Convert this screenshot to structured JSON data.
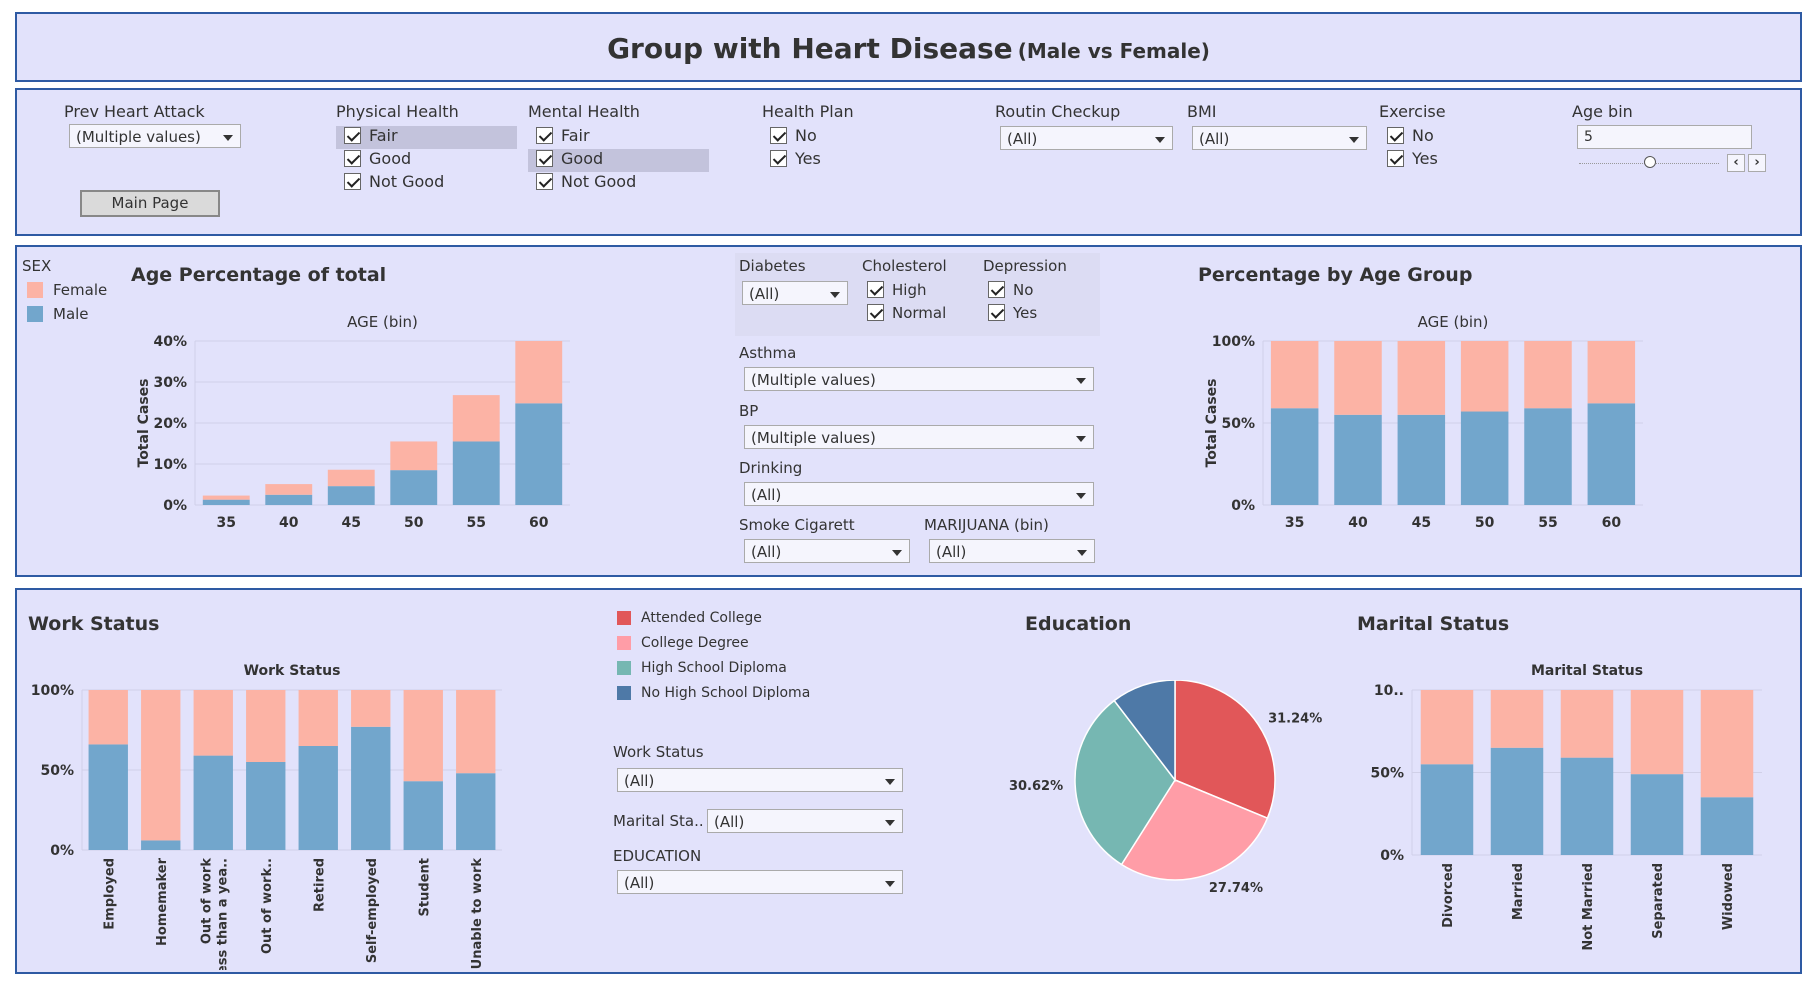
{
  "title": {
    "main": "Group with Heart Disease",
    "sub": "(Male vs Female)"
  },
  "colors": {
    "female": "#fcb3a5",
    "male": "#72a6cc",
    "panel": "#e2e2fb",
    "border": "#2e5aa3"
  },
  "filters": {
    "prev_heart_attack": {
      "label": "Prev Heart Attack",
      "value": "(Multiple values)"
    },
    "main_page_button": "Main Page",
    "physical_health": {
      "label": "Physical Health",
      "options": [
        "Fair",
        "Good",
        "Not Good"
      ]
    },
    "mental_health": {
      "label": "Mental Health",
      "options": [
        "Fair",
        "Good",
        "Not Good"
      ]
    },
    "health_plan": {
      "label": "Health Plan",
      "options": [
        "No",
        "Yes"
      ]
    },
    "routin_checkup": {
      "label": "Routin Checkup",
      "value": "(All)"
    },
    "bmi": {
      "label": "BMI",
      "value": "(All)"
    },
    "exercise": {
      "label": "Exercise",
      "options": [
        "No",
        "Yes"
      ]
    },
    "age_bin": {
      "label": "Age bin",
      "value": "5",
      "prev_icon": "chevron-left-icon",
      "next_icon": "chevron-right-icon"
    }
  },
  "sex_legend": {
    "title": "SEX",
    "items": [
      "Female",
      "Male"
    ]
  },
  "age_chart": {
    "title": "Age Percentage of total"
  },
  "pct_chart": {
    "title": "Percentage by Age Group"
  },
  "mid_filters": {
    "diabetes": {
      "label": "Diabetes",
      "value": "(All)"
    },
    "cholesterol": {
      "label": "Cholesterol",
      "options": [
        "High",
        "Normal"
      ]
    },
    "depression": {
      "label": "Depression",
      "options": [
        "No",
        "Yes"
      ]
    },
    "asthma": {
      "label": "Asthma",
      "value": "(Multiple values)"
    },
    "bp": {
      "label": "BP",
      "value": "(Multiple values)"
    },
    "drinking": {
      "label": "Drinking",
      "value": "(All)"
    },
    "smoke_cigarett": {
      "label": "Smoke Cigarett",
      "value": "(All)"
    },
    "marijuana": {
      "label": "MARIJUANA (bin)",
      "value": "(All)"
    }
  },
  "work_chart": {
    "title": "Work Status"
  },
  "edu_legend": {
    "items": [
      {
        "name": "Attended College",
        "color": "#e15759"
      },
      {
        "name": "College Degree",
        "color": "#ff9da7"
      },
      {
        "name": "High School Diploma",
        "color": "#76b7b2"
      },
      {
        "name": "No High School Diploma",
        "color": "#4e79a7"
      }
    ]
  },
  "bottom_filters": {
    "work_status": {
      "label": "Work Status",
      "value": "(All)"
    },
    "marital_status": {
      "label": "Marital Sta..",
      "value": "(All)"
    },
    "education": {
      "label": "EDUCATION",
      "value": "(All)"
    }
  },
  "edu_chart": {
    "title": "Education"
  },
  "marital_chart": {
    "title": "Marital Status"
  },
  "chart_data": [
    {
      "id": "age_pct_total",
      "type": "bar",
      "stacked": true,
      "title": "Age Percentage of total",
      "xlabel": "AGE (bin)",
      "ylabel": "Total Cases",
      "categories": [
        "35",
        "40",
        "45",
        "50",
        "55",
        "60"
      ],
      "series": [
        {
          "name": "Male",
          "values": [
            1.3,
            2.5,
            4.6,
            8.5,
            15.5,
            24.8
          ]
        },
        {
          "name": "Female",
          "values": [
            1.0,
            2.6,
            4.0,
            7.0,
            11.3,
            15.2
          ]
        }
      ],
      "ylim": [
        0,
        40
      ],
      "yticks": [
        "0%",
        "10%",
        "20%",
        "30%",
        "40%"
      ],
      "grid": true
    },
    {
      "id": "pct_by_age_group",
      "type": "bar",
      "stacked": true,
      "title": "Percentage by Age Group",
      "xlabel": "AGE (bin)",
      "ylabel": "Total Cases",
      "categories": [
        "35",
        "40",
        "45",
        "50",
        "55",
        "60"
      ],
      "series": [
        {
          "name": "Male",
          "values": [
            59,
            55,
            55,
            57,
            59,
            62
          ]
        },
        {
          "name": "Female",
          "values": [
            41,
            45,
            45,
            43,
            41,
            38
          ]
        }
      ],
      "ylim": [
        0,
        100
      ],
      "yticks": [
        "0%",
        "50%",
        "100%"
      ],
      "grid": true
    },
    {
      "id": "work_status",
      "type": "bar",
      "stacked": true,
      "title": "Work Status",
      "xlabel": "Work Status",
      "categories": [
        "Employed",
        "Homemaker",
        "Out of work\n(less than a yea..",
        "Out of work..",
        "Retired",
        "Self-employed",
        "Student",
        "Unable to work"
      ],
      "series": [
        {
          "name": "Male",
          "values": [
            66,
            6,
            59,
            55,
            65,
            77,
            43,
            48
          ]
        },
        {
          "name": "Female",
          "values": [
            34,
            94,
            41,
            45,
            35,
            23,
            57,
            52
          ]
        }
      ],
      "ylim": [
        0,
        100
      ],
      "yticks": [
        "0%",
        "50%",
        "100%"
      ],
      "grid": true
    },
    {
      "id": "education",
      "type": "pie",
      "title": "Education",
      "slices": [
        {
          "name": "Attended College",
          "value": 31.24,
          "label": "31.24%",
          "color": "#e15759"
        },
        {
          "name": "College Degree",
          "value": 27.74,
          "label": "27.74%",
          "color": "#ff9da7"
        },
        {
          "name": "High School Diploma",
          "value": 30.62,
          "label": "30.62%",
          "color": "#76b7b2"
        },
        {
          "name": "No High School Diploma",
          "value": 10.4,
          "label": "10.40%",
          "color": "#4e79a7"
        }
      ]
    },
    {
      "id": "marital_status",
      "type": "bar",
      "stacked": true,
      "title": "Marital Status",
      "xlabel": "Marital Status",
      "categories": [
        "Divorced",
        "Married",
        "Not Married",
        "Separated",
        "Widowed"
      ],
      "series": [
        {
          "name": "Male",
          "values": [
            55,
            65,
            59,
            49,
            35
          ]
        },
        {
          "name": "Female",
          "values": [
            45,
            35,
            41,
            51,
            65
          ]
        }
      ],
      "ylim": [
        0,
        100
      ],
      "yticks": [
        "0%",
        "50%",
        "10.."
      ],
      "grid": true
    }
  ]
}
